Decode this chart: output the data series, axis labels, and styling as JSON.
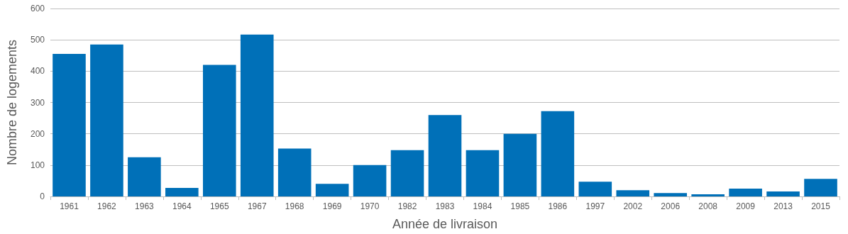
{
  "chart_data": {
    "type": "bar",
    "xlabel": "Année de livraison",
    "ylabel": "Nombre de logements",
    "categories": [
      "1961",
      "1962",
      "1963",
      "1964",
      "1965",
      "1967",
      "1968",
      "1969",
      "1970",
      "1982",
      "1983",
      "1984",
      "1985",
      "1986",
      "1997",
      "2002",
      "2006",
      "2008",
      "2009",
      "2013",
      "2015"
    ],
    "values": [
      455,
      485,
      125,
      27,
      420,
      517,
      153,
      40,
      100,
      148,
      260,
      148,
      200,
      272,
      47,
      20,
      11,
      7,
      25,
      16,
      56
    ],
    "color": "#0070b8",
    "ylim": [
      0,
      600
    ],
    "yticks": [
      0,
      100,
      200,
      300,
      400,
      500,
      600
    ],
    "grid": "y"
  }
}
